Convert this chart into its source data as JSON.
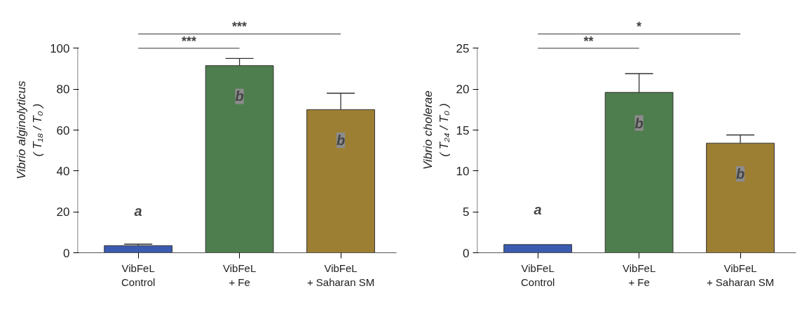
{
  "chart_data": [
    {
      "type": "bar",
      "ylabel": "Vibrio alginolyticus\n( T₁₈ / T₀ )",
      "categories": [
        "VibFeL\nControl",
        "VibFeL\n+ Fe",
        "VibFeL\n+ Saharan SM"
      ],
      "values": [
        3.5,
        91.5,
        70
      ],
      "errors": [
        0.7,
        3.5,
        8
      ],
      "colors": [
        "#3a5bb0",
        "#4e7d4e",
        "#9c7f32"
      ],
      "ylim": [
        0,
        100
      ],
      "yticks": [
        0,
        20,
        40,
        60,
        80,
        100
      ],
      "grid": false,
      "annotations": [
        "a",
        "b",
        "b",
        "***",
        "***"
      ]
    },
    {
      "type": "bar",
      "ylabel": "Vibrio cholerae\n( T₂₄ / T₀ )",
      "categories": [
        "VibFeL\nControl",
        "VibFeL\n+ Fe",
        "VibFeL\n+ Saharan SM"
      ],
      "values": [
        1.0,
        19.6,
        13.4
      ],
      "errors": [
        null,
        2.3,
        1.0
      ],
      "colors": [
        "#3a5bb0",
        "#4e7d4e",
        "#9c7f32"
      ],
      "ylim": [
        0,
        25
      ],
      "yticks": [
        0,
        5,
        10,
        15,
        20,
        25
      ],
      "grid": false,
      "annotations": [
        "a",
        "b",
        "b",
        "**",
        "*"
      ]
    }
  ]
}
